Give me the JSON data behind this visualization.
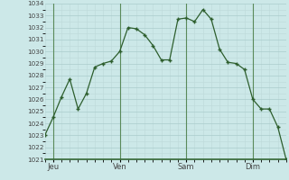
{
  "y_values": [
    1023,
    1024.5,
    1026.2,
    1027.7,
    1025.2,
    1026.5,
    1028.7,
    1029.0,
    1029.2,
    1030.0,
    1032.0,
    1031.9,
    1031.4,
    1030.5,
    1029.3,
    1029.3,
    1032.7,
    1032.8,
    1032.5,
    1033.5,
    1032.7,
    1030.2,
    1029.1,
    1029.0,
    1028.5,
    1026.0,
    1025.2,
    1025.2,
    1023.7,
    1021.0
  ],
  "x_ticks_pos": [
    1,
    9,
    17,
    25
  ],
  "x_ticks_labels": [
    "Jeu",
    "Ven",
    "Sam",
    "Dim"
  ],
  "x_vlines": [
    1,
    9,
    17,
    25
  ],
  "y_min": 1021,
  "y_max": 1034,
  "line_color": "#2d5e2d",
  "marker_color": "#2d5e2d",
  "bg_color": "#cce8e8",
  "grid_major_color": "#aacccc",
  "grid_minor_color": "#bcd8d8",
  "vline_color": "#5a8a5a",
  "tick_label_color": "#444444",
  "bottom_line_color": "#336633"
}
